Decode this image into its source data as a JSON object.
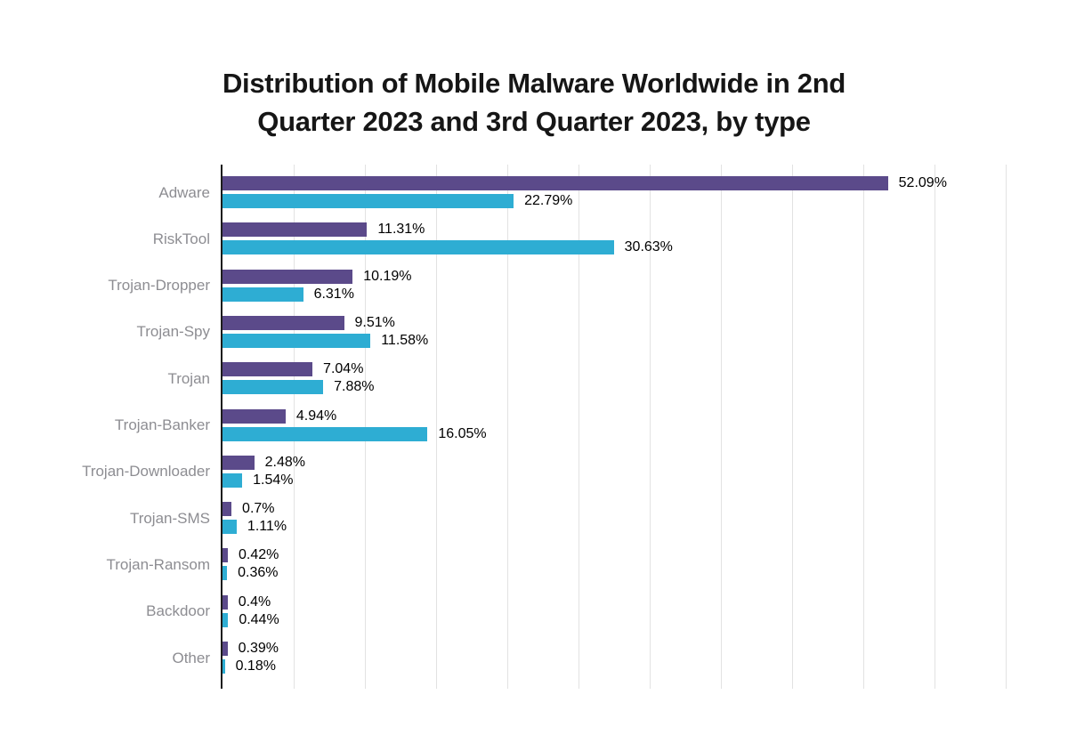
{
  "title": {
    "line1": "Distribution of Mobile Malware Worldwide in 2nd",
    "line2": "Quarter 2023 and 3rd Quarter 2023, by type"
  },
  "chart_data": {
    "type": "bar",
    "orientation": "horizontal",
    "title": "Distribution of Mobile Malware Worldwide in 2nd Quarter 2023 and 3rd Quarter 2023, by type",
    "categories": [
      "Adware",
      "RiskTool",
      "Trojan-Dropper",
      "Trojan-Spy",
      "Trojan",
      "Trojan-Banker",
      "Trojan-Downloader",
      "Trojan-SMS",
      "Trojan-Ransom",
      "Backdoor",
      "Other"
    ],
    "series": [
      {
        "name": "2nd Quarter 2023",
        "color": "#5b4a8a",
        "values": [
          52.09,
          11.31,
          10.19,
          9.51,
          7.04,
          4.94,
          2.48,
          0.7,
          0.42,
          0.4,
          0.39
        ],
        "labels": [
          "52.09%",
          "11.31%",
          "10.19%",
          "9.51%",
          "7.04%",
          "4.94%",
          "2.48%",
          "0.7%",
          "0.42%",
          "0.4%",
          "0.39%"
        ]
      },
      {
        "name": "3rd Quarter 2023",
        "color": "#2eadd3",
        "values": [
          22.79,
          30.63,
          6.31,
          11.58,
          7.88,
          16.05,
          1.54,
          1.11,
          0.36,
          0.44,
          0.18
        ],
        "labels": [
          "22.79%",
          "30.63%",
          "6.31%",
          "11.58%",
          "7.88%",
          "16.05%",
          "1.54%",
          "1.11%",
          "0.36%",
          "0.44%",
          "0.18%"
        ]
      }
    ],
    "xlabel": "",
    "ylabel": "",
    "xlim": [
      0,
      63.4
    ],
    "grid": true,
    "gridline_count": 11,
    "legend": "none",
    "value_labels": "outside-end"
  },
  "colors": {
    "background": "#ffffff",
    "title_text": "#161616",
    "category_label": "#8d8d92",
    "value_label": "#000000",
    "gridline": "#e2e2e2",
    "axis_line": "#1c1c1c",
    "series_q2": "#5b4a8a",
    "series_q3": "#2eadd3"
  }
}
